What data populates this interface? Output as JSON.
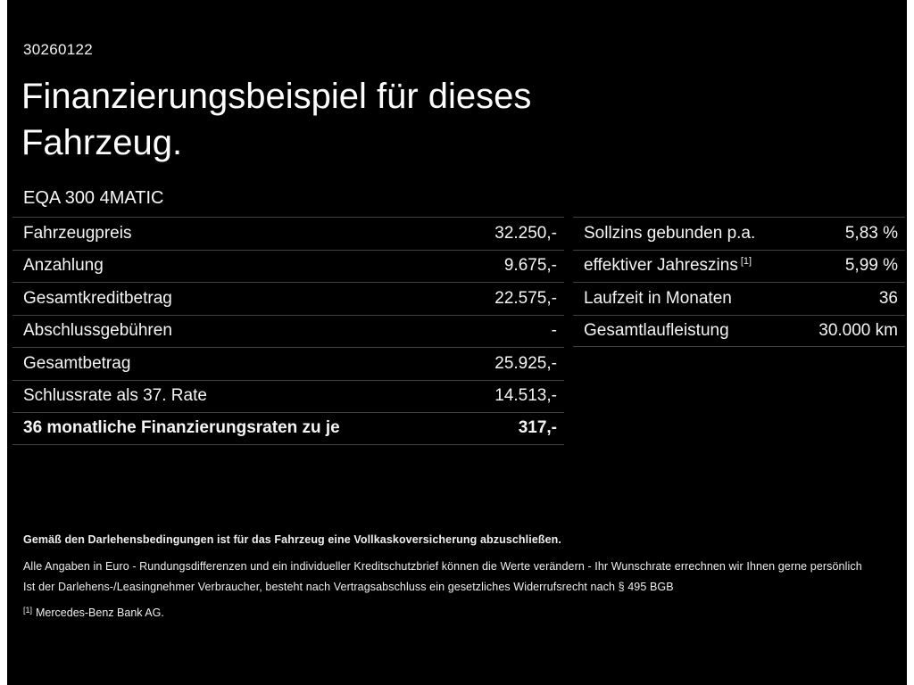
{
  "page": {
    "doc_number": "30260122",
    "title": "Finanzierungsbeispiel für dieses Fahrzeug.",
    "model": "EQA 300 4MATIC",
    "background_color": "#000000",
    "text_color": "#ffffff",
    "divider_color": "#414141"
  },
  "left_table": {
    "rows": [
      {
        "label": "Fahrzeugpreis",
        "value": "32.250,-"
      },
      {
        "label": "Anzahlung",
        "value": "9.675,-"
      },
      {
        "label": "Gesamtkreditbetrag",
        "value": "22.575,-"
      },
      {
        "label": "Abschlussgebühren",
        "value": "-"
      },
      {
        "label": "Gesamtbetrag",
        "value": "25.925,-"
      },
      {
        "label": "Schlussrate als 37. Rate",
        "value": "14.513,-"
      },
      {
        "label": "36 monatliche Finanzierungsraten zu je",
        "value": "317,-"
      }
    ]
  },
  "right_table": {
    "rows": [
      {
        "label": "Sollzins gebunden p.a.",
        "sup": "",
        "value": "5,83 %"
      },
      {
        "label": "effektiver Jahreszins",
        "sup": "[1]",
        "value": "5,99 %"
      },
      {
        "label": "Laufzeit in Monaten",
        "sup": "",
        "value": "36"
      },
      {
        "label": "Gesamtlaufleistung",
        "sup": "",
        "value": "30.000 km"
      }
    ]
  },
  "footer": {
    "line1": "Gemäß den Darlehensbedingungen ist für das Fahrzeug eine Vollkaskoversicherung abzuschließen.",
    "line2": "Alle Angaben in Euro - Rundungsdifferenzen und ein individueller Kreditschutzbrief können die Werte verändern - Ihr Wunschrate errechnen wir Ihnen gerne persönlich",
    "line3": "Ist der Darlehens-/Leasingnehmer Verbraucher, besteht nach Vertragsabschluss ein gesetzliches Widerrufsrecht nach § 495 BGB",
    "footnote_marker": "[1]",
    "footnote_text": "Mercedes-Benz Bank AG."
  }
}
